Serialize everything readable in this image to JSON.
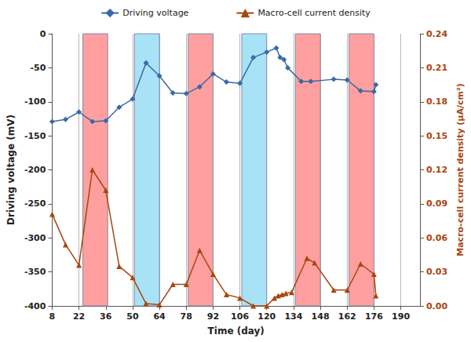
{
  "chart_data": {
    "type": "line",
    "x_label": "Time (day)",
    "y_label": "Driving voltage (mV)",
    "y2_label": "Macro-cell current density (μA/cm²)",
    "xlim": [
      8,
      200
    ],
    "xticks": [
      8,
      22,
      36,
      50,
      64,
      78,
      92,
      106,
      120,
      134,
      148,
      162,
      176,
      190
    ],
    "ylim": [
      -400,
      0
    ],
    "yticks": [
      -400,
      -350,
      -300,
      -250,
      -200,
      -150,
      -100,
      -50,
      0
    ],
    "y2lim": [
      0,
      0.24
    ],
    "y2ticks": [
      {
        "value": 0,
        "label": "0.00"
      },
      0.03,
      0.06,
      0.09,
      0.12,
      0.15,
      0.18,
      0.21,
      0.24
    ],
    "grid": "x",
    "legend": "top",
    "shaded_periods": [
      {
        "from": 24,
        "to": 37,
        "color": "#ff9f9f"
      },
      {
        "from": 51,
        "to": 64,
        "color": "#a8e2f6"
      },
      {
        "from": 79,
        "to": 92,
        "color": "#ff9f9f"
      },
      {
        "from": 107,
        "to": 120,
        "color": "#a8e2f6"
      },
      {
        "from": 135,
        "to": 148,
        "color": "#ff9f9f"
      },
      {
        "from": 163,
        "to": 176,
        "color": "#ff9f9f"
      }
    ],
    "series": [
      {
        "name": "Driving voltage",
        "color": "#3a68a8",
        "marker": "diamond",
        "x": [
          8,
          15,
          22,
          29,
          36,
          43,
          50,
          57,
          64,
          71,
          78,
          85,
          92,
          99,
          106,
          113,
          120,
          125,
          127,
          129,
          131,
          138,
          143,
          155,
          162,
          169,
          176,
          177
        ],
        "values": [
          -129,
          -126,
          -115,
          -129,
          -128,
          -108,
          -96,
          -43,
          -62,
          -87,
          -88,
          -78,
          -59,
          -71,
          -73,
          -35,
          -27,
          -21,
          -35,
          -38,
          -50,
          -70,
          -70,
          -67,
          -68,
          -84,
          -85,
          -75
        ]
      },
      {
        "name": "Macro-cell current density",
        "color": "#a8460f",
        "marker": "triangle",
        "axis": "y2",
        "x": [
          8,
          15,
          22,
          29,
          36,
          43,
          50,
          57,
          64,
          71,
          78,
          85,
          92,
          99,
          106,
          113,
          120,
          124,
          126,
          128,
          130,
          133,
          141,
          145,
          155,
          162,
          169,
          176,
          177
        ],
        "values": [
          0.081,
          0.054,
          0.036,
          0.12,
          0.102,
          0.035,
          0.025,
          0.002,
          0.001,
          0.019,
          0.019,
          0.049,
          0.028,
          0.01,
          0.007,
          0.0,
          0.0,
          0.007,
          0.009,
          0.01,
          0.011,
          0.012,
          0.042,
          0.038,
          0.014,
          0.014,
          0.037,
          0.028,
          0.009
        ]
      }
    ]
  }
}
